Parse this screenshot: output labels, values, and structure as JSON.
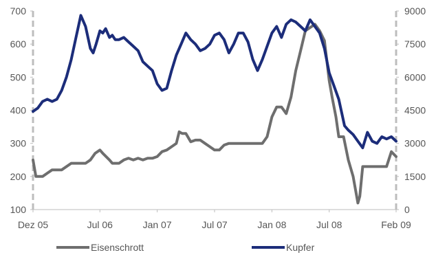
{
  "chart_data": {
    "type": "line",
    "title": "",
    "xlabel": "",
    "ylabel": "",
    "y2label": "",
    "grid": false,
    "legend_placement": "bottom",
    "x_tick_labels": [
      "Dez 05",
      "Jul 06",
      "Jan 07",
      "Jul 07",
      "Jan 08",
      "Jul 08",
      "Feb 09"
    ],
    "x_tick_months": [
      0,
      7,
      13,
      19,
      25,
      31,
      38
    ],
    "x_range_months": [
      0,
      38
    ],
    "y_left": {
      "ylim": [
        100,
        700
      ],
      "ticks": [
        100,
        200,
        300,
        400,
        500,
        600,
        700
      ]
    },
    "y_right": {
      "ylim": [
        0,
        9000
      ],
      "ticks": [
        0,
        1500,
        3000,
        4500,
        6000,
        7500,
        9000
      ]
    },
    "series": [
      {
        "name": "Eisenschrott",
        "axis": "left",
        "color": "#6e6e6e",
        "x": [
          0,
          0.3,
          1,
          1.5,
          2,
          3,
          4,
          5,
          5.5,
          6,
          6.5,
          7,
          7.3,
          8,
          8.3,
          9,
          9.5,
          10,
          10.5,
          11,
          11.5,
          12,
          12.5,
          13,
          13.5,
          14,
          14.5,
          15,
          15.3,
          15.6,
          16,
          16.5,
          17,
          17.5,
          18,
          18.5,
          19,
          19.5,
          20,
          20.5,
          21,
          22,
          23,
          24,
          24.5,
          25,
          25.5,
          26,
          26.5,
          27,
          27.5,
          28,
          28.5,
          29,
          29.5,
          30,
          30.5,
          31,
          31.3,
          31.7,
          32,
          32.5,
          33,
          33.5,
          34,
          34.2,
          34.5,
          35,
          36,
          37,
          37.5,
          38
        ],
        "values": [
          250,
          200,
          200,
          210,
          220,
          220,
          240,
          240,
          240,
          250,
          270,
          280,
          270,
          250,
          240,
          240,
          250,
          255,
          250,
          255,
          250,
          255,
          255,
          260,
          275,
          280,
          290,
          300,
          335,
          330,
          330,
          305,
          310,
          310,
          300,
          290,
          280,
          280,
          295,
          300,
          300,
          300,
          300,
          300,
          320,
          380,
          410,
          410,
          390,
          440,
          520,
          580,
          640,
          650,
          660,
          640,
          610,
          490,
          440,
          380,
          320,
          320,
          250,
          200,
          120,
          140,
          230,
          230,
          230,
          230,
          275,
          260
        ]
      },
      {
        "name": "Kupfer",
        "axis": "right",
        "color": "#1c2d7a",
        "x": [
          0,
          0.5,
          1,
          1.5,
          2,
          2.5,
          3,
          3.5,
          4,
          4.5,
          5,
          5.5,
          6,
          6.3,
          6.6,
          7,
          7.3,
          7.6,
          8,
          8.3,
          8.6,
          9,
          9.5,
          10,
          10.5,
          11,
          11.5,
          12,
          12.5,
          13,
          13.5,
          14,
          14.5,
          15,
          15.5,
          16,
          16.5,
          17,
          17.5,
          18,
          18.5,
          19,
          19.5,
          20,
          20.5,
          21,
          21.5,
          22,
          22.5,
          23,
          23.5,
          24,
          24.5,
          25,
          25.5,
          26,
          26.5,
          27,
          27.5,
          28,
          28.5,
          29,
          29.5,
          30,
          30.5,
          31,
          31.5,
          32,
          32.3,
          32.6,
          33,
          33.5,
          34,
          34.5,
          35,
          35.5,
          36,
          36.5,
          37,
          37.5,
          38
        ],
        "values": [
          4450,
          4600,
          4900,
          5000,
          4900,
          5000,
          5400,
          6000,
          6800,
          7800,
          8800,
          8300,
          7300,
          7100,
          7500,
          8100,
          8000,
          8200,
          7800,
          7900,
          7700,
          7700,
          7800,
          7600,
          7400,
          7200,
          6700,
          6500,
          6300,
          5700,
          5400,
          5500,
          6300,
          7000,
          7500,
          8000,
          7700,
          7500,
          7200,
          7300,
          7500,
          7900,
          8000,
          7700,
          7100,
          7500,
          8000,
          8000,
          7600,
          6800,
          6300,
          6800,
          7400,
          8000,
          8300,
          7800,
          8400,
          8600,
          8500,
          8300,
          8100,
          8600,
          8300,
          8000,
          7300,
          6200,
          5600,
          5000,
          4400,
          3800,
          3600,
          3400,
          3100,
          2800,
          3500,
          3100,
          3000,
          3300,
          3200,
          3300,
          3100
        ]
      }
    ]
  }
}
